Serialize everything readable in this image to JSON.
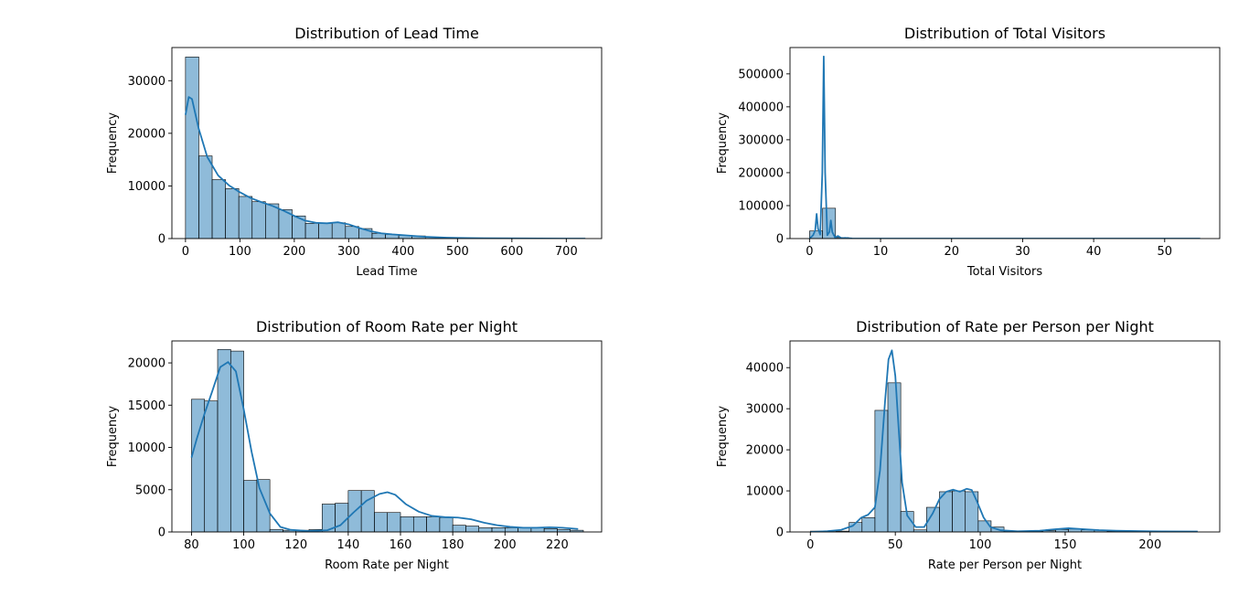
{
  "chart_data": [
    {
      "type": "bar",
      "title": "Distribution of Lead Time",
      "xlabel": "Lead Time",
      "ylabel": "Frequency",
      "xlim": [
        -25,
        765
      ],
      "ylim": [
        0,
        36300
      ],
      "xticks": [
        0,
        100,
        200,
        300,
        400,
        500,
        600,
        700
      ],
      "yticks": [
        0,
        10000,
        20000,
        30000
      ],
      "bins": {
        "start": 0,
        "width": 24.5
      },
      "values": [
        34500,
        15700,
        11200,
        9500,
        8000,
        7000,
        6600,
        5500,
        4300,
        2900,
        2900,
        3000,
        2300,
        1900,
        1000,
        800,
        600,
        500,
        300,
        200,
        150,
        100,
        80,
        60,
        40,
        30,
        20,
        15,
        10,
        5
      ],
      "kde": [
        [
          0,
          23500
        ],
        [
          6,
          26900
        ],
        [
          12,
          26500
        ],
        [
          24,
          21000
        ],
        [
          40,
          15500
        ],
        [
          60,
          12000
        ],
        [
          80,
          10100
        ],
        [
          100,
          8800
        ],
        [
          120,
          7700
        ],
        [
          140,
          6900
        ],
        [
          160,
          6200
        ],
        [
          180,
          5300
        ],
        [
          200,
          4300
        ],
        [
          220,
          3400
        ],
        [
          240,
          3000
        ],
        [
          260,
          2900
        ],
        [
          280,
          3100
        ],
        [
          300,
          2700
        ],
        [
          320,
          2000
        ],
        [
          340,
          1400
        ],
        [
          360,
          1000
        ],
        [
          380,
          800
        ],
        [
          400,
          650
        ],
        [
          420,
          500
        ],
        [
          440,
          350
        ],
        [
          460,
          250
        ],
        [
          480,
          170
        ],
        [
          500,
          120
        ],
        [
          550,
          60
        ],
        [
          600,
          30
        ],
        [
          650,
          15
        ],
        [
          700,
          5
        ],
        [
          735,
          0
        ]
      ]
    },
    {
      "type": "bar",
      "title": "Distribution of Total Visitors",
      "xlabel": "Total Visitors",
      "ylabel": "Frequency",
      "xlim": [
        -2.75,
        57.75
      ],
      "ylim": [
        0,
        580000
      ],
      "xticks": [
        0,
        10,
        20,
        30,
        40,
        50
      ],
      "yticks": [
        0,
        100000,
        200000,
        300000,
        400000,
        500000
      ],
      "bins": {
        "start": 0,
        "width": 1.83
      },
      "values": [
        23000,
        92000,
        3000,
        300,
        0,
        0,
        0,
        0,
        0,
        0,
        0,
        0,
        0,
        0,
        0,
        0,
        0,
        0,
        0,
        0,
        0,
        0,
        0,
        0,
        0,
        0,
        0,
        0,
        0,
        0
      ],
      "kde": [
        [
          0,
          0
        ],
        [
          0.5,
          10000
        ],
        [
          0.8,
          25000
        ],
        [
          1,
          75000
        ],
        [
          1.2,
          30000
        ],
        [
          1.5,
          12000
        ],
        [
          1.8,
          200000
        ],
        [
          2,
          553000
        ],
        [
          2.2,
          200000
        ],
        [
          2.5,
          10000
        ],
        [
          2.8,
          20000
        ],
        [
          3,
          55000
        ],
        [
          3.2,
          20000
        ],
        [
          3.6,
          3000
        ],
        [
          4,
          8000
        ],
        [
          4.5,
          1000
        ],
        [
          5,
          2000
        ],
        [
          6,
          200
        ],
        [
          8,
          50
        ],
        [
          10,
          10
        ],
        [
          20,
          0
        ],
        [
          55,
          0
        ]
      ]
    },
    {
      "type": "bar",
      "title": "Distribution of Room Rate per Night",
      "xlabel": "Room Rate per Night",
      "ylabel": "Frequency",
      "xlim": [
        72.5,
        237
      ],
      "ylim": [
        0,
        22600
      ],
      "xticks": [
        80,
        100,
        120,
        140,
        160,
        180,
        200,
        220
      ],
      "yticks": [
        0,
        5000,
        10000,
        15000,
        20000
      ],
      "bins": {
        "start": 80,
        "width": 5
      },
      "values": [
        15700,
        15500,
        21600,
        21400,
        6100,
        6200,
        300,
        200,
        200,
        300,
        3300,
        3400,
        4900,
        4900,
        2300,
        2300,
        1800,
        1800,
        1800,
        1700,
        800,
        700,
        500,
        500,
        500,
        500,
        500,
        400,
        300,
        200
      ],
      "kde": [
        [
          80,
          8800
        ],
        [
          82,
          11000
        ],
        [
          85,
          14000
        ],
        [
          88,
          16700
        ],
        [
          91,
          19500
        ],
        [
          94,
          20100
        ],
        [
          97,
          19000
        ],
        [
          100,
          14500
        ],
        [
          103,
          9500
        ],
        [
          106,
          5200
        ],
        [
          110,
          2200
        ],
        [
          114,
          600
        ],
        [
          118,
          250
        ],
        [
          125,
          100
        ],
        [
          132,
          200
        ],
        [
          137,
          800
        ],
        [
          142,
          2300
        ],
        [
          147,
          3700
        ],
        [
          152,
          4500
        ],
        [
          155,
          4700
        ],
        [
          158,
          4400
        ],
        [
          162,
          3300
        ],
        [
          167,
          2400
        ],
        [
          172,
          1900
        ],
        [
          177,
          1750
        ],
        [
          182,
          1700
        ],
        [
          187,
          1500
        ],
        [
          192,
          1100
        ],
        [
          197,
          800
        ],
        [
          202,
          600
        ],
        [
          207,
          500
        ],
        [
          212,
          500
        ],
        [
          217,
          550
        ],
        [
          222,
          500
        ],
        [
          228,
          350
        ]
      ]
    },
    {
      "type": "bar",
      "title": "Distribution of Rate per Person per Night",
      "xlabel": "Rate per Person per Night",
      "ylabel": "Frequency",
      "xlim": [
        -12,
        241
      ],
      "ylim": [
        0,
        46500
      ],
      "xticks": [
        0,
        50,
        100,
        150,
        200
      ],
      "yticks": [
        0,
        10000,
        20000,
        30000,
        40000
      ],
      "bins": {
        "start": 0,
        "width": 7.6
      },
      "values": [
        200,
        100,
        200,
        2300,
        3500,
        29600,
        36300,
        5000,
        500,
        6000,
        9800,
        10000,
        9800,
        2700,
        1200,
        200,
        100,
        150,
        300,
        600,
        700,
        500,
        400,
        200,
        150,
        100,
        100,
        100,
        50,
        50
      ],
      "kde": [
        [
          0,
          0
        ],
        [
          10,
          200
        ],
        [
          18,
          500
        ],
        [
          25,
          1500
        ],
        [
          30,
          3500
        ],
        [
          34,
          4200
        ],
        [
          38,
          6000
        ],
        [
          41,
          15000
        ],
        [
          44,
          32000
        ],
        [
          46,
          42000
        ],
        [
          48,
          44200
        ],
        [
          50,
          38000
        ],
        [
          52,
          25000
        ],
        [
          54,
          12000
        ],
        [
          57,
          4000
        ],
        [
          62,
          1200
        ],
        [
          67,
          1200
        ],
        [
          72,
          4500
        ],
        [
          76,
          8000
        ],
        [
          80,
          9800
        ],
        [
          84,
          10300
        ],
        [
          88,
          9800
        ],
        [
          92,
          10500
        ],
        [
          95,
          10200
        ],
        [
          98,
          7500
        ],
        [
          102,
          3500
        ],
        [
          106,
          1200
        ],
        [
          112,
          400
        ],
        [
          122,
          150
        ],
        [
          135,
          300
        ],
        [
          145,
          700
        ],
        [
          152,
          900
        ],
        [
          160,
          700
        ],
        [
          170,
          450
        ],
        [
          180,
          300
        ],
        [
          200,
          150
        ],
        [
          228,
          100
        ]
      ]
    }
  ]
}
